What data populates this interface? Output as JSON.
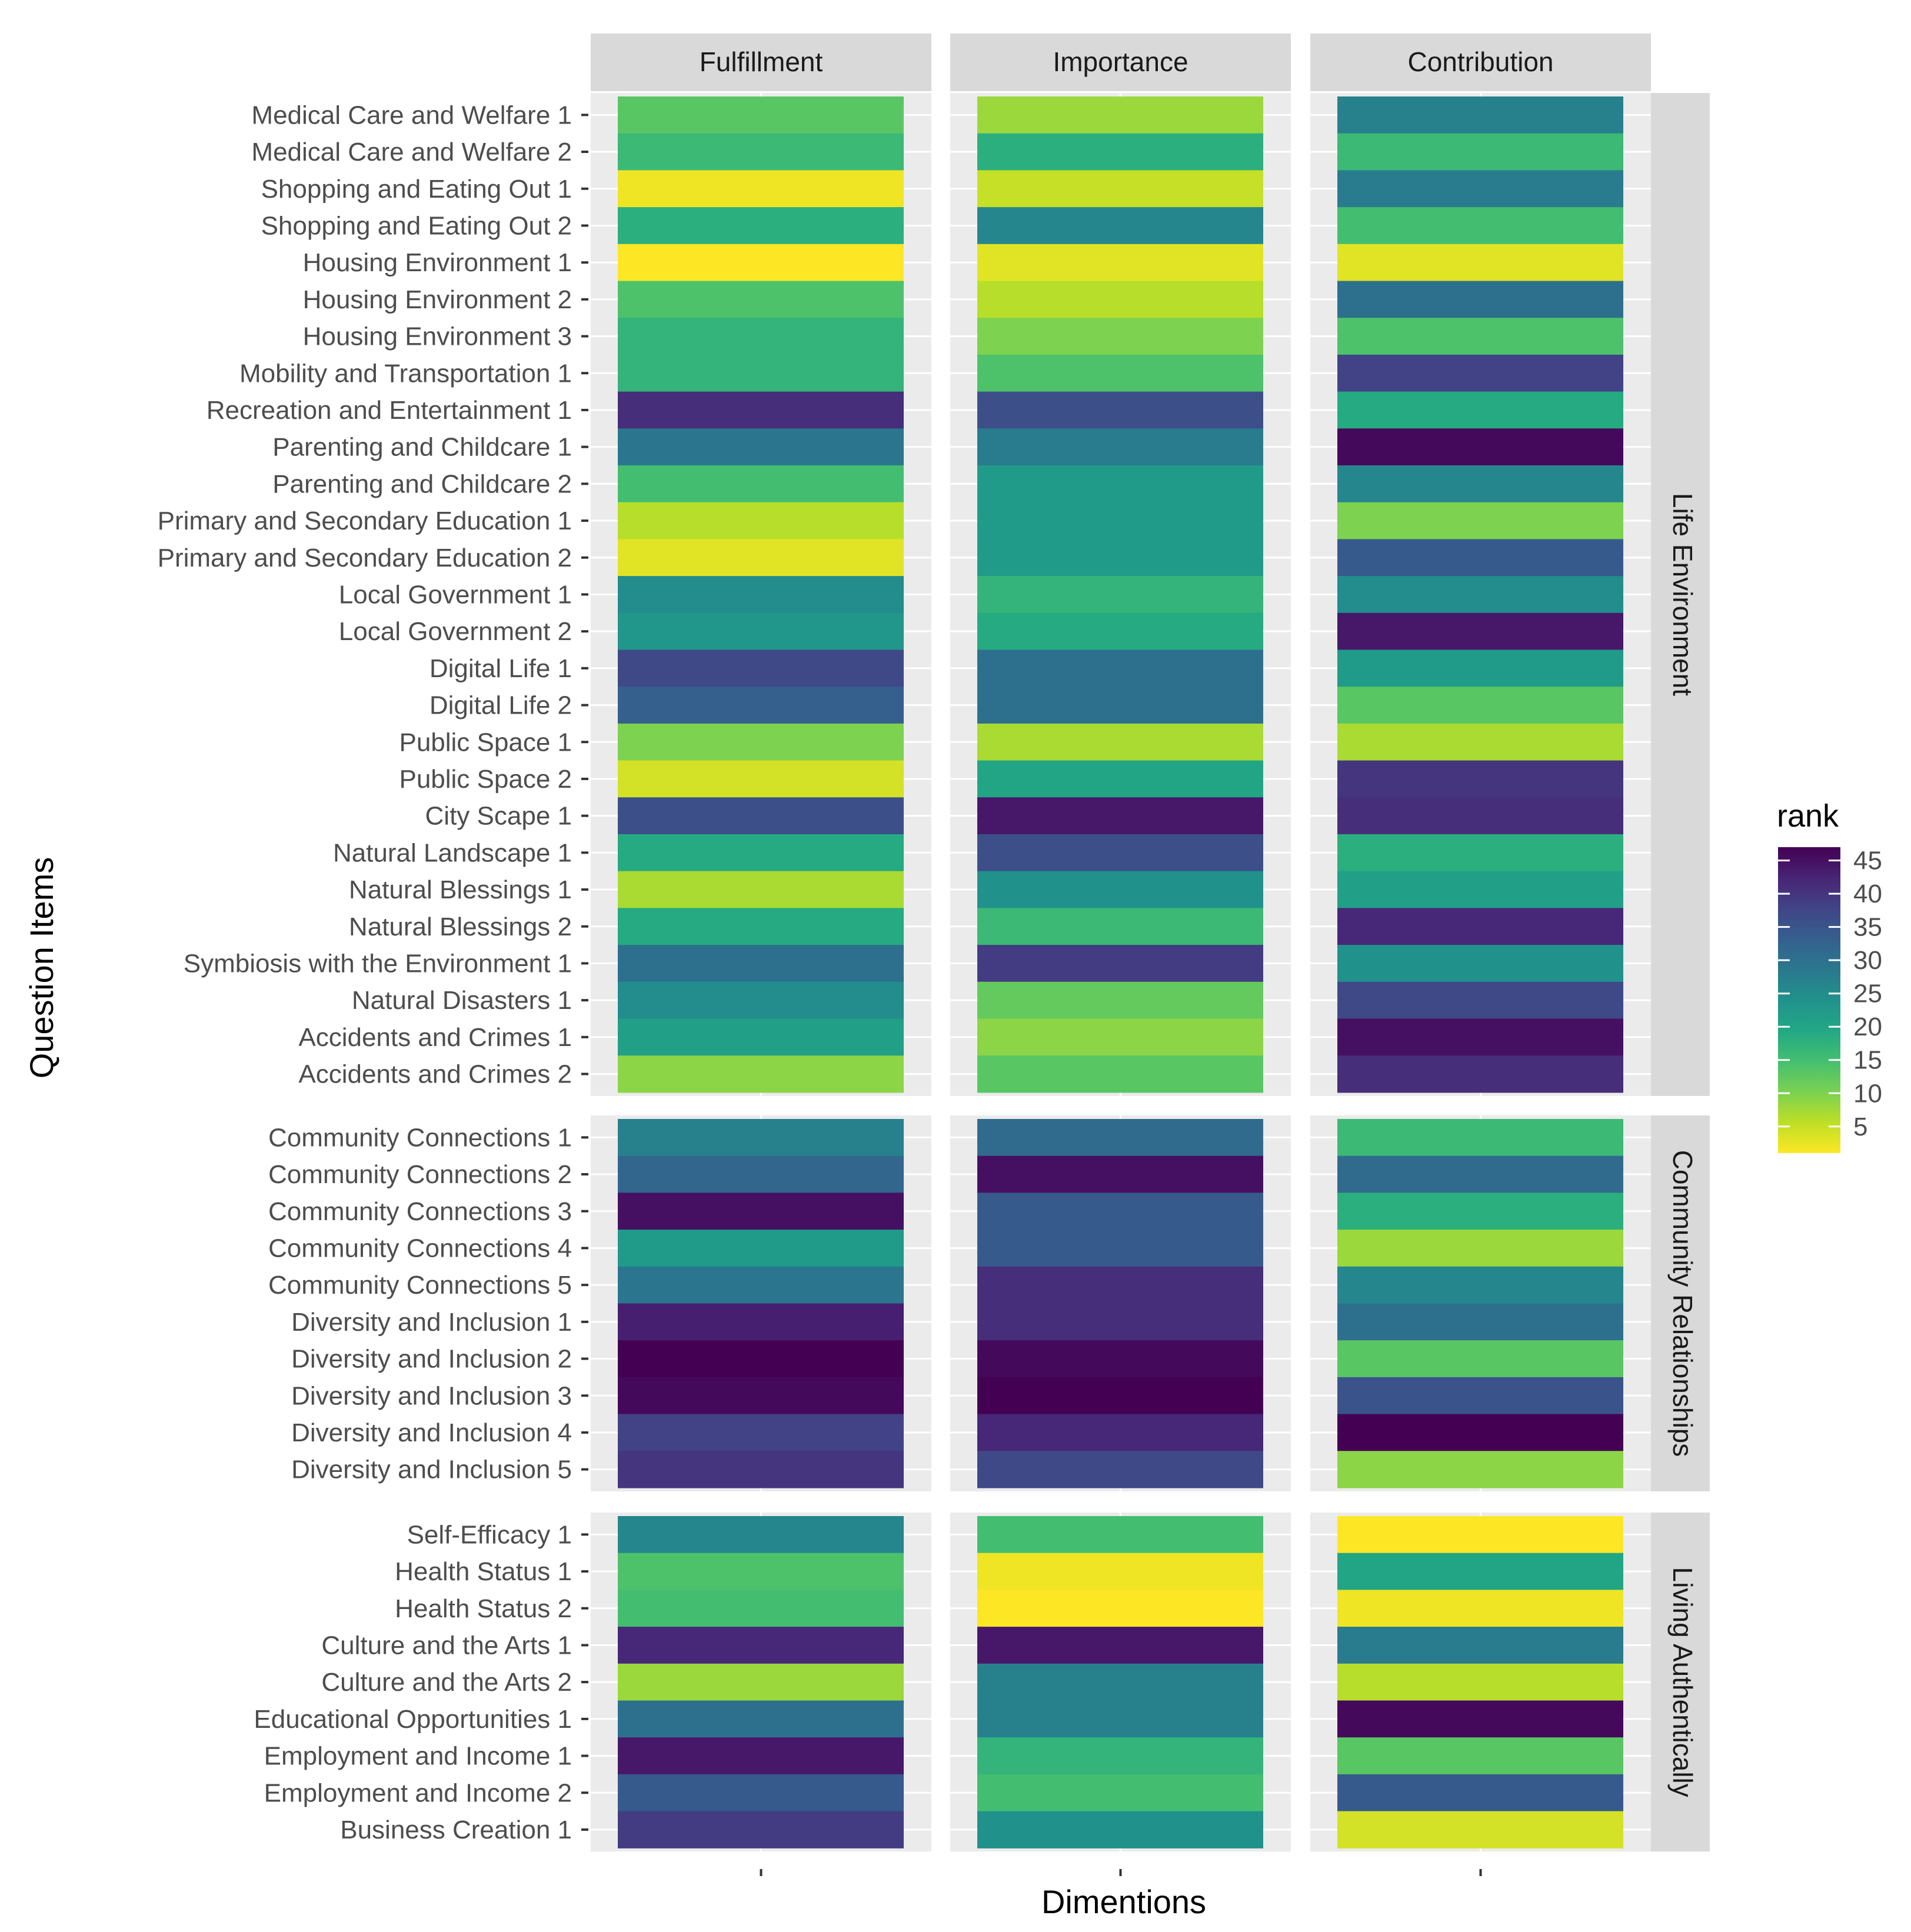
{
  "chart_data": {
    "type": "heatmap",
    "xlabel": "Dimentions",
    "ylabel": "Question Items",
    "columns": [
      "Fulfillment",
      "Importance",
      "Contribution"
    ],
    "legend": {
      "title": "rank",
      "ticks": [
        5,
        10,
        15,
        20,
        25,
        30,
        35,
        40,
        45
      ],
      "range": [
        1,
        47
      ],
      "colormap": "viridis (reversed: low rank = yellow, high rank = purple)"
    },
    "panels": [
      {
        "name": "Life Environment",
        "items": [
          {
            "label": "Medical Care and Welfare 1",
            "values": [
              13,
              8,
              27
            ]
          },
          {
            "label": "Medical Care and Welfare 2",
            "values": [
              16,
              18,
              16
            ]
          },
          {
            "label": "Shopping and Eating Out 1",
            "values": [
              2,
              5,
              28
            ]
          },
          {
            "label": "Shopping and Eating Out 2",
            "values": [
              18,
              26,
              15
            ]
          },
          {
            "label": "Housing Environment 1",
            "values": [
              1,
              3,
              3
            ]
          },
          {
            "label": "Housing Environment 2",
            "values": [
              14,
              6,
              30
            ]
          },
          {
            "label": "Housing Environment 3",
            "values": [
              17,
              10,
              14
            ]
          },
          {
            "label": "Mobility and Transportation 1",
            "values": [
              17,
              14,
              38
            ]
          },
          {
            "label": "Recreation and Entertainment 1",
            "values": [
              41,
              36,
              19
            ]
          },
          {
            "label": "Parenting and Childcare 1",
            "values": [
              29,
              28,
              46
            ]
          },
          {
            "label": "Parenting and Childcare 2",
            "values": [
              15,
              22,
              26
            ]
          },
          {
            "label": "Primary and Secondary Education 1",
            "values": [
              6,
              22,
              10
            ]
          },
          {
            "label": "Primary and Secondary Education 2",
            "values": [
              3,
              22,
              34
            ]
          },
          {
            "label": "Local Government 1",
            "values": [
              25,
              17,
              25
            ]
          },
          {
            "label": "Local Government 2",
            "values": [
              23,
              19,
              44
            ]
          },
          {
            "label": "Digital Life 1",
            "values": [
              37,
              30,
              22
            ]
          },
          {
            "label": "Digital Life 2",
            "values": [
              33,
              30,
              13
            ]
          },
          {
            "label": "Public Space 1",
            "values": [
              10,
              7,
              7
            ]
          },
          {
            "label": "Public Space 2",
            "values": [
              4,
              20,
              40
            ]
          },
          {
            "label": "City Scape 1",
            "values": [
              36,
              44,
              41
            ]
          },
          {
            "label": "Natural Landscape 1",
            "values": [
              19,
              36,
              18
            ]
          },
          {
            "label": "Natural Blessings 1",
            "values": [
              7,
              24,
              21
            ]
          },
          {
            "label": "Natural Blessings 2",
            "values": [
              19,
              16,
              42
            ]
          },
          {
            "label": "Symbiosis with the Environment 1",
            "values": [
              30,
              39,
              24
            ]
          },
          {
            "label": "Natural Disasters 1",
            "values": [
              25,
              12,
              37
            ]
          },
          {
            "label": "Accidents and Crimes 1",
            "values": [
              21,
              9,
              45
            ]
          },
          {
            "label": "Accidents and Crimes 2",
            "values": [
              9,
              13,
              41
            ]
          }
        ]
      },
      {
        "name": "Community Relationships",
        "items": [
          {
            "label": "Community Connections 1",
            "values": [
              27,
              31,
              16
            ]
          },
          {
            "label": "Community Connections 2",
            "values": [
              32,
              45,
              31
            ]
          },
          {
            "label": "Community Connections 3",
            "values": [
              45,
              34,
              18
            ]
          },
          {
            "label": "Community Connections 4",
            "values": [
              22,
              34,
              8
            ]
          },
          {
            "label": "Community Connections 5",
            "values": [
              29,
              41,
              26
            ]
          },
          {
            "label": "Diversity and Inclusion 1",
            "values": [
              43,
              41,
              30
            ]
          },
          {
            "label": "Diversity and Inclusion 2",
            "values": [
              47,
              46,
              13
            ]
          },
          {
            "label": "Diversity and Inclusion 3",
            "values": [
              46,
              47,
              35
            ]
          },
          {
            "label": "Diversity and Inclusion 4",
            "values": [
              38,
              42,
              47
            ]
          },
          {
            "label": "Diversity and Inclusion 5",
            "values": [
              40,
              37,
              9
            ]
          }
        ]
      },
      {
        "name": "Living Authentically",
        "items": [
          {
            "label": "Self-Efficacy 1",
            "values": [
              26,
              15,
              1
            ]
          },
          {
            "label": "Health Status 1",
            "values": [
              14,
              2,
              20
            ]
          },
          {
            "label": "Health Status 2",
            "values": [
              15,
              1,
              2
            ]
          },
          {
            "label": "Culture and the Arts 1",
            "values": [
              42,
              44,
              28
            ]
          },
          {
            "label": "Culture and the Arts 2",
            "values": [
              8,
              27,
              6
            ]
          },
          {
            "label": "Educational Opportunities 1",
            "values": [
              30,
              27,
              46
            ]
          },
          {
            "label": "Employment and Income 1",
            "values": [
              44,
              17,
              13
            ]
          },
          {
            "label": "Employment and Income 2",
            "values": [
              34,
              15,
              34
            ]
          },
          {
            "label": "Business Creation 1",
            "values": [
              39,
              24,
              4
            ]
          }
        ]
      }
    ]
  }
}
